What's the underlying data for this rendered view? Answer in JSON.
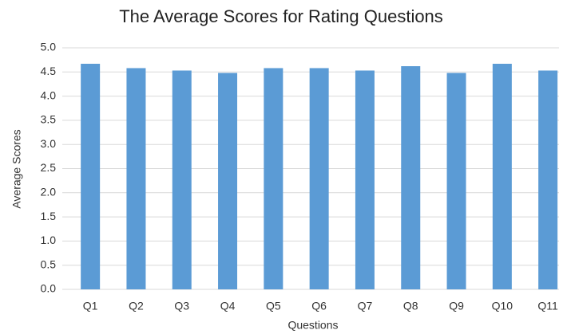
{
  "chart_data": {
    "type": "bar",
    "title": "The Average Scores for Rating Questions",
    "x_label": "Questions",
    "y_label": "Average Scores",
    "categories": [
      "Q1",
      "Q2",
      "Q3",
      "Q4",
      "Q5",
      "Q6",
      "Q7",
      "Q8",
      "Q9",
      "Q10",
      "Q11"
    ],
    "values": [
      4.67,
      4.58,
      4.53,
      4.48,
      4.58,
      4.58,
      4.53,
      4.62,
      4.48,
      4.67,
      4.53
    ],
    "color": "#5b9bd5",
    "ylim": [
      0,
      5
    ],
    "yticks": [
      {
        "value": 0,
        "label": "0.0"
      },
      {
        "value": 0.5,
        "label": "0.5"
      },
      {
        "value": 1,
        "label": "1.0"
      },
      {
        "value": 1.5,
        "label": "1.5"
      },
      {
        "value": 2,
        "label": "2.0"
      },
      {
        "value": 2.5,
        "label": "2.5"
      },
      {
        "value": 3,
        "label": "3.0"
      },
      {
        "value": 3.5,
        "label": "3.5"
      },
      {
        "value": 4,
        "label": "4.0"
      },
      {
        "value": 4.5,
        "label": "4.5"
      },
      {
        "value": 5,
        "label": "5.0"
      }
    ],
    "grid": true
  }
}
